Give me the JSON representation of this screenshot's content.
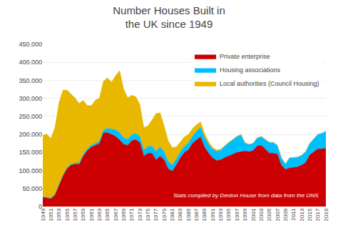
{
  "chart_data": {
    "type": "area",
    "title": "Number Houses Built in\nthe UK since 1949",
    "x": [
      1949,
      1950,
      1951,
      1952,
      1953,
      1954,
      1955,
      1956,
      1957,
      1958,
      1959,
      1960,
      1961,
      1962,
      1963,
      1964,
      1965,
      1966,
      1967,
      1968,
      1969,
      1970,
      1971,
      1972,
      1973,
      1974,
      1975,
      1976,
      1977,
      1978,
      1979,
      1980,
      1981,
      1982,
      1983,
      1984,
      1985,
      1986,
      1987,
      1988,
      1989,
      1990,
      1991,
      1992,
      1993,
      1994,
      1995,
      1996,
      1997,
      1998,
      1999,
      2000,
      2001,
      2002,
      2003,
      2004,
      2005,
      2006,
      2007,
      2008,
      2009,
      2010,
      2011,
      2012,
      2013,
      2014,
      2015,
      2016,
      2017,
      2018,
      2019
    ],
    "series": [
      {
        "name": "Private enterprise",
        "color": "#cc0000",
        "values": [
          26000,
          24000,
          22000,
          32000,
          60000,
          85000,
          105000,
          115000,
          118000,
          117000,
          140000,
          155000,
          165000,
          170000,
          175000,
          205000,
          205000,
          200000,
          195000,
          185000,
          173000,
          170000,
          183000,
          186000,
          178000,
          140000,
          148000,
          148000,
          130000,
          140000,
          130000,
          105000,
          98000,
          115000,
          135000,
          150000,
          157000,
          175000,
          185000,
          193000,
          165000,
          148000,
          135000,
          128000,
          130000,
          136000,
          140000,
          145000,
          150000,
          152000,
          154000,
          152000,
          155000,
          168000,
          170000,
          160000,
          148000,
          148000,
          145000,
          115000,
          103000,
          107000,
          108000,
          110000,
          115000,
          122000,
          143000,
          152000,
          160000,
          160000,
          162000
        ]
      },
      {
        "name": "Housing associations",
        "color": "#00bfff",
        "values": [
          2000,
          2000,
          2000,
          2000,
          3000,
          3000,
          3000,
          3000,
          3000,
          4000,
          5000,
          5000,
          5000,
          5000,
          6000,
          8000,
          12000,
          15000,
          18000,
          20000,
          18000,
          17000,
          16000,
          17000,
          17000,
          17000,
          18000,
          20000,
          23000,
          25000,
          22000,
          20000,
          18000,
          17000,
          17000,
          17000,
          19000,
          20000,
          24000,
          27000,
          27000,
          25000,
          24000,
          25000,
          26000,
          32000,
          37000,
          40000,
          44000,
          47000,
          22000,
          20000,
          20000,
          22000,
          24000,
          26000,
          30000,
          30000,
          25000,
          20000,
          15000,
          28000,
          28000,
          27000,
          27000,
          30000,
          32000,
          35000,
          40000,
          43000,
          47000
        ]
      },
      {
        "name": "Local authorities (Council Housing)",
        "color": "#e8b800",
        "values": [
          170000,
          175000,
          165000,
          185000,
          225000,
          235000,
          215000,
          195000,
          180000,
          165000,
          150000,
          120000,
          110000,
          120000,
          120000,
          135000,
          140000,
          130000,
          150000,
          172000,
          135000,
          115000,
          110000,
          102000,
          88000,
          62000,
          58000,
          72000,
          105000,
          95000,
          72000,
          58000,
          48000,
          33000,
          28000,
          26000,
          24000,
          21000,
          18000,
          15000,
          11000,
          7000,
          5000,
          4000,
          3000,
          2000,
          2000,
          1800,
          1500,
          1200,
          1000,
          900,
          900,
          800,
          700,
          600,
          500,
          400,
          300,
          200,
          100,
          100,
          100,
          100,
          100,
          100,
          100,
          100,
          100,
          100,
          100
        ]
      }
    ],
    "stacked": true,
    "xlim": [
      1949,
      2019
    ],
    "xticks": [
      1949,
      1951,
      1953,
      1955,
      1957,
      1959,
      1961,
      1963,
      1965,
      1967,
      1969,
      1971,
      1973,
      1975,
      1977,
      1979,
      1981,
      1983,
      1985,
      1987,
      1989,
      1991,
      1993,
      1995,
      1997,
      1999,
      2001,
      2003,
      2005,
      2007,
      2009,
      2011,
      2013,
      2015,
      2017,
      2019
    ],
    "ylim": [
      0,
      450000
    ],
    "yticks": [
      0,
      {
        "value": 50000,
        "label": "50.000"
      },
      {
        "value": 100000,
        "label": "100.000"
      },
      {
        "value": 150000,
        "label": "150.000"
      },
      {
        "value": 200000,
        "label": "200.000"
      },
      {
        "value": 250000,
        "label": "250.000"
      },
      {
        "value": 300000,
        "label": "300.000"
      },
      {
        "value": 350000,
        "label": "350.000"
      },
      {
        "value": 400000,
        "label": "400.000"
      },
      {
        "value": 450000,
        "label": "450.000"
      }
    ],
    "grid": true,
    "legend": "upper right",
    "annotation": "Stats compiled by Denton House from data from the ONS"
  }
}
